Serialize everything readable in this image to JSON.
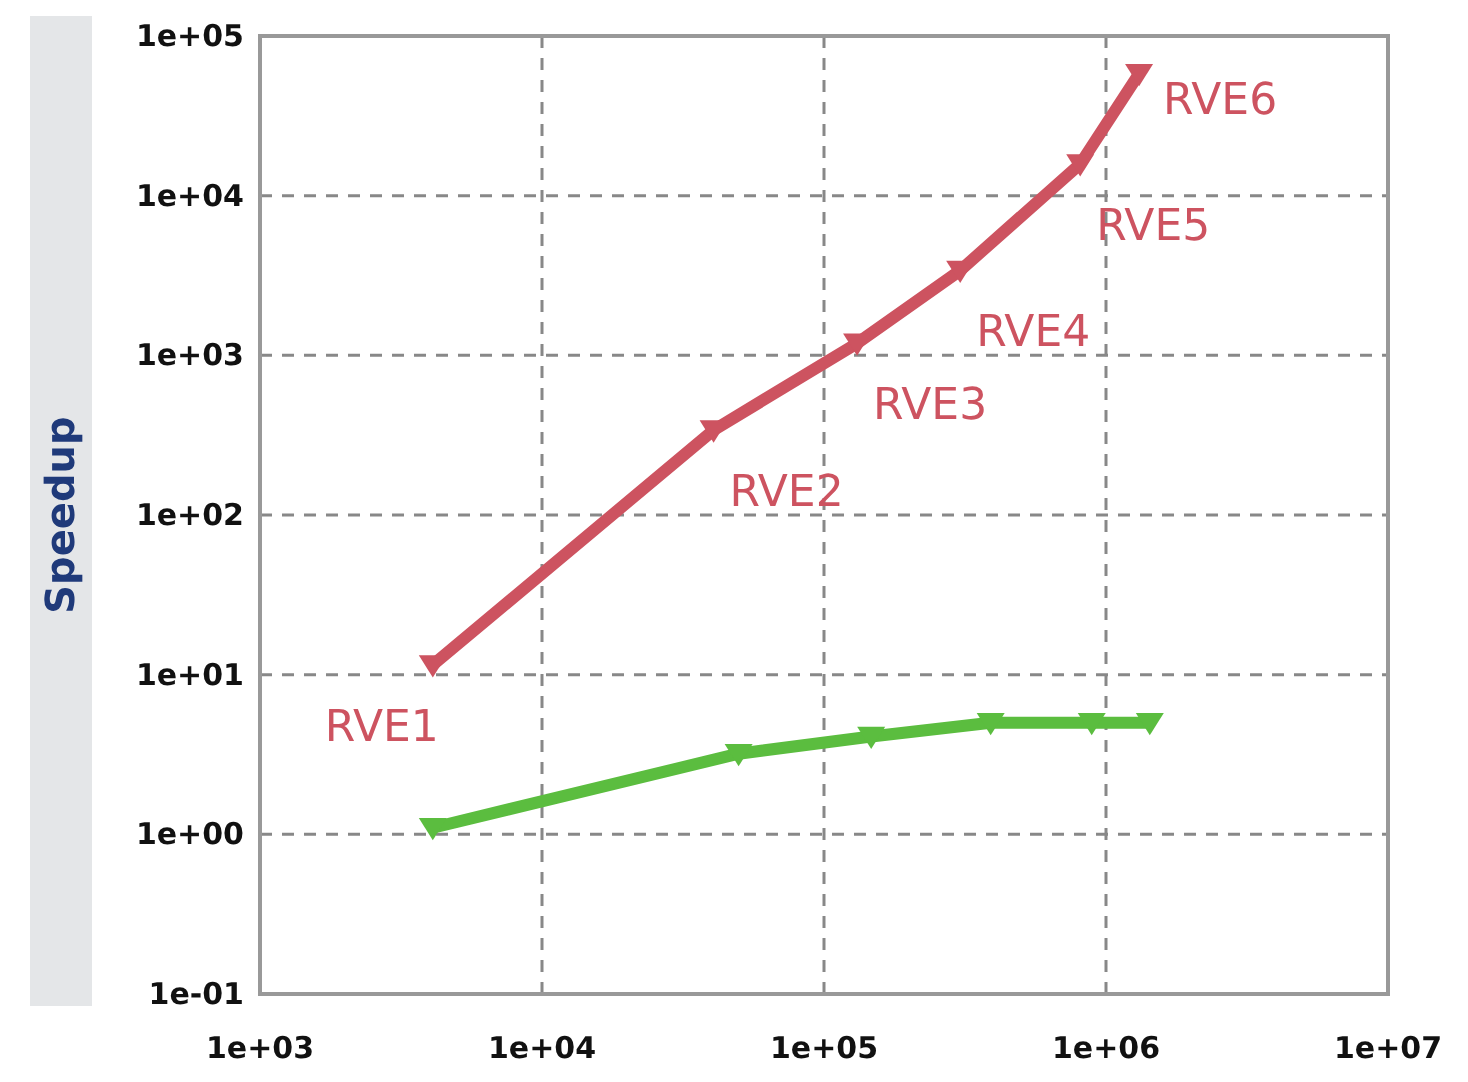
{
  "chart_data": {
    "type": "line",
    "ylabel": "Speedup",
    "log": "xy",
    "grid": true,
    "marker": "triangle",
    "line_style": "solid",
    "xlim": [
      1000,
      10000000
    ],
    "xticks": [
      {
        "value": 1000,
        "label": "1e+03"
      },
      {
        "value": 10000,
        "label": "1e+04"
      },
      {
        "value": 100000,
        "label": "1e+05"
      },
      {
        "value": 1000000,
        "label": "1e+06"
      },
      {
        "value": 10000000,
        "label": "1e+07"
      }
    ],
    "ylim": [
      0.1,
      100000
    ],
    "yticks": [
      {
        "value": 0.1,
        "label": "1e-01"
      },
      {
        "value": 1,
        "label": "1e+00"
      },
      {
        "value": 10,
        "label": "1e+01"
      },
      {
        "value": 100,
        "label": "1e+02"
      },
      {
        "value": 1000,
        "label": "1e+03"
      },
      {
        "value": 10000,
        "label": "1e+04"
      },
      {
        "value": 100000,
        "label": "1e+05"
      }
    ],
    "series": [
      {
        "color": "#cd5360",
        "x": [
          4100,
          40600,
          131000,
          304000,
          810000,
          1310000
        ],
        "values": [
          11.5,
          340,
          1190,
          3400,
          15800,
          58000
        ]
      },
      {
        "color": "#5bbd3f",
        "x": [
          4100,
          49800,
          147000,
          390000,
          890000,
          1430000
        ],
        "values": [
          1.1,
          3.2,
          4.1,
          5.0,
          5.0,
          5.0
        ]
      }
    ],
    "annotations": [
      {
        "text": "RVE1",
        "x": 4100,
        "y": 11.5
      },
      {
        "text": "RVE2",
        "x": 40600,
        "y": 340
      },
      {
        "text": "RVE3",
        "x": 131000,
        "y": 1190
      },
      {
        "text": "RVE4",
        "x": 304000,
        "y": 3400
      },
      {
        "text": "RVE5",
        "x": 810000,
        "y": 15800
      },
      {
        "text": "RVE6",
        "x": 1310000,
        "y": 58000
      }
    ]
  }
}
